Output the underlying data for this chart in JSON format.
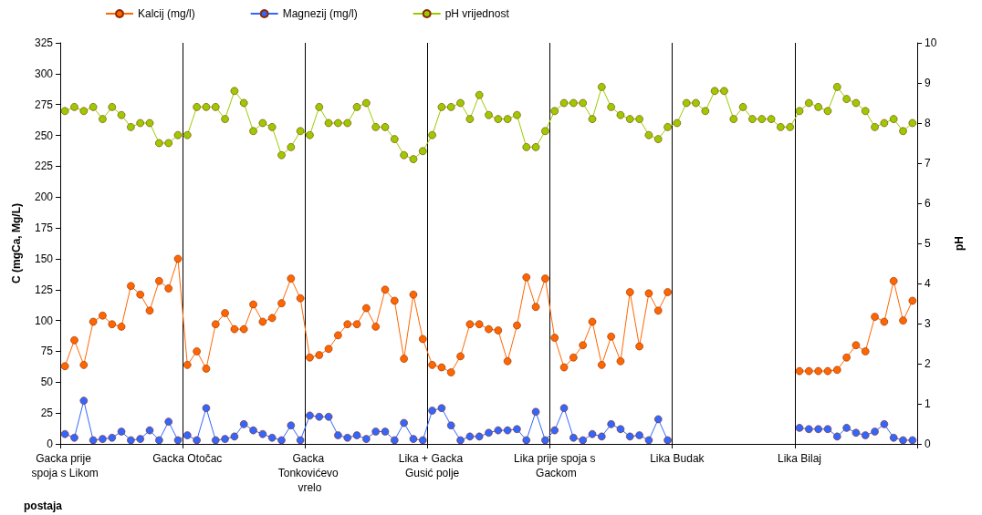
{
  "chart_data": {
    "type": "line",
    "xlabel": "postaja",
    "ylabel": "C (mgCa, Mg/L)",
    "y2label": "pH",
    "categories": [
      "Gacka prije spoja s Likom",
      null,
      null,
      null,
      null,
      null,
      null,
      null,
      null,
      null,
      null,
      null,
      null,
      "Gacka Otočac",
      null,
      null,
      null,
      null,
      null,
      null,
      null,
      null,
      null,
      null,
      null,
      null,
      "Gacka Tonkovićevo vrelo",
      null,
      null,
      null,
      null,
      null,
      null,
      null,
      null,
      null,
      null,
      null,
      null,
      "Lika + Gacka Gusić polje",
      null,
      null,
      null,
      null,
      null,
      null,
      null,
      null,
      null,
      null,
      null,
      null,
      "Lika prije spoja s Gackom",
      null,
      null,
      null,
      null,
      null,
      null,
      null,
      null,
      null,
      null,
      null,
      null,
      "Lika Budak",
      null,
      null,
      null,
      null,
      null,
      null,
      null,
      null,
      null,
      null,
      null,
      null,
      "Lika Bilaj",
      null,
      null,
      null,
      null,
      null,
      null,
      null,
      null,
      null,
      null,
      null,
      null
    ],
    "series": [
      {
        "name": "Kalcij (mg/l)",
        "color": "#ff6600",
        "values": [
          63,
          84,
          64,
          99,
          104,
          97,
          95,
          128,
          121,
          108,
          132,
          126,
          150,
          64,
          75,
          61,
          97,
          106,
          93,
          93,
          113,
          99,
          102,
          114,
          134,
          118,
          70,
          72,
          77,
          88,
          97,
          97,
          110,
          95,
          125,
          116,
          69,
          121,
          85,
          64,
          62,
          58,
          71,
          97,
          97,
          93,
          92,
          67,
          96,
          135,
          111,
          134,
          86,
          62,
          70,
          80,
          99,
          64,
          87,
          67,
          123,
          79,
          122,
          108,
          123,
          null,
          null,
          null,
          null,
          null,
          null,
          null,
          null,
          null,
          null,
          null,
          null,
          null,
          59,
          59,
          59,
          59,
          60,
          70,
          80,
          75,
          103,
          99,
          132,
          100,
          116
        ]
      },
      {
        "name": "Magnezij (mg/l)",
        "color": "#3366ff",
        "values": [
          8,
          5,
          35,
          3,
          4,
          5,
          10,
          3,
          4,
          11,
          3,
          18,
          3,
          7,
          3,
          29,
          3,
          4,
          6,
          16,
          11,
          8,
          5,
          3,
          15,
          3,
          23,
          22,
          22,
          7,
          5,
          7,
          4,
          10,
          10,
          3,
          17,
          4,
          3,
          27,
          29,
          15,
          3,
          6,
          6,
          9,
          11,
          11,
          12,
          3,
          26,
          3,
          11,
          29,
          5,
          3,
          8,
          6,
          16,
          12,
          6,
          7,
          3,
          20,
          3,
          null,
          null,
          null,
          null,
          null,
          null,
          null,
          null,
          null,
          null,
          null,
          null,
          null,
          13,
          12,
          12,
          12,
          6,
          13,
          9,
          7,
          10,
          16,
          5,
          3,
          3
        ]
      },
      {
        "name": "pH vrijednost",
        "color": "#99cc00",
        "axis": "y2",
        "values": [
          8.3,
          8.4,
          8.3,
          8.4,
          8.1,
          8.4,
          8.2,
          7.9,
          8.0,
          8.0,
          7.5,
          7.5,
          7.7,
          7.7,
          8.4,
          8.4,
          8.4,
          8.1,
          8.8,
          8.5,
          7.8,
          8.0,
          7.9,
          7.2,
          7.4,
          7.8,
          7.7,
          8.4,
          8.0,
          8.0,
          8.0,
          8.4,
          8.5,
          7.9,
          7.9,
          7.6,
          7.2,
          7.1,
          7.3,
          7.7,
          8.4,
          8.4,
          8.5,
          8.1,
          8.7,
          8.2,
          8.1,
          8.1,
          8.2,
          7.4,
          7.4,
          7.8,
          8.3,
          8.5,
          8.5,
          8.5,
          8.1,
          8.9,
          8.4,
          8.2,
          8.1,
          8.1,
          7.7,
          7.6,
          7.9,
          8.0,
          8.5,
          8.5,
          8.3,
          8.8,
          8.8,
          8.1,
          8.4,
          8.1,
          8.1,
          8.1,
          7.9,
          7.9,
          8.3,
          8.5,
          8.4,
          8.3,
          8.9,
          8.6,
          8.5,
          8.3,
          7.9,
          8.0,
          8.1,
          7.8,
          8.0
        ]
      }
    ],
    "ylim": [
      0,
      325
    ],
    "yticks": [
      0,
      25,
      50,
      75,
      100,
      125,
      150,
      175,
      200,
      225,
      250,
      275,
      300,
      325
    ],
    "y2lim": [
      0,
      10
    ],
    "y2ticks": [
      0,
      1,
      2,
      3,
      4,
      5,
      6,
      7,
      8,
      9,
      10
    ],
    "grid": "x",
    "legend": "top left",
    "marker": "circle",
    "line_style": "solid"
  }
}
